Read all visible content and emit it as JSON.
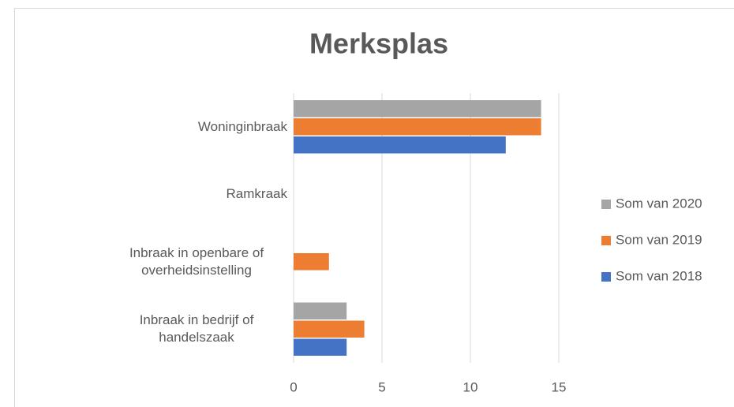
{
  "chart_data": {
    "type": "hbar",
    "title": "Merksplas",
    "categories": [
      "Inbraak in bedrijf of handelszaak",
      "Inbraak in openbare of overheidsinstelling",
      "Ramkraak",
      "Woninginbraak"
    ],
    "series": [
      {
        "name": "Som van 2018",
        "color": "#4472c4",
        "values": [
          3,
          0,
          0,
          12
        ]
      },
      {
        "name": "Som van 2019",
        "color": "#ed7d31",
        "values": [
          4,
          2,
          0,
          14
        ]
      },
      {
        "name": "Som van 2020",
        "color": "#a5a5a5",
        "values": [
          3,
          0,
          0,
          14
        ]
      }
    ],
    "xlim": [
      0,
      15
    ],
    "xticks": [
      0,
      5,
      10,
      15
    ],
    "grid": true,
    "legend": "right"
  }
}
